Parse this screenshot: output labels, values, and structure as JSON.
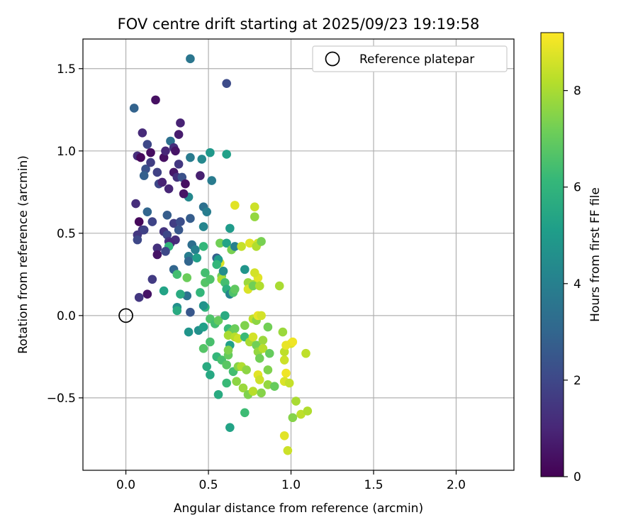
{
  "chart_data": {
    "type": "scatter",
    "title": "FOV centre drift starting at 2025/09/23 19:19:58",
    "xlabel": "Angular distance from reference (arcmin)",
    "ylabel": "Rotation from reference (arcmin)",
    "xlim": [
      -0.26,
      2.35
    ],
    "ylim": [
      -0.94,
      1.68
    ],
    "xticks": [
      0.0,
      0.5,
      1.0,
      1.5,
      2.0
    ],
    "xtick_labels": [
      "0.0",
      "0.5",
      "1.0",
      "1.5",
      "2.0"
    ],
    "yticks": [
      -0.5,
      0.0,
      0.5,
      1.0,
      1.5
    ],
    "ytick_labels": [
      "−0.5",
      "0.0",
      "0.5",
      "1.0",
      "1.5"
    ],
    "grid": true,
    "legend": {
      "position": "top-right",
      "entries": [
        "Reference platepar"
      ]
    },
    "reference_point": {
      "x": 0.0,
      "y": 0.0
    },
    "colorbar": {
      "label": "Hours from first FF file",
      "range": [
        0,
        9.2
      ],
      "ticks": [
        0,
        2,
        4,
        6,
        8
      ],
      "tick_labels": [
        "0",
        "2",
        "4",
        "6",
        "8"
      ],
      "colormap": [
        "#440154",
        "#482878",
        "#3e4989",
        "#31688e",
        "#26828e",
        "#1f9e89",
        "#35b779",
        "#6ece58",
        "#b5de2b",
        "#fde725"
      ]
    },
    "points": [
      [
        0.05,
        1.26,
        2.9
      ],
      [
        0.18,
        1.31,
        0.4
      ],
      [
        0.39,
        1.56,
        3.6
      ],
      [
        0.61,
        1.41,
        2.1
      ],
      [
        0.1,
        1.11,
        1.1
      ],
      [
        0.13,
        1.04,
        2.0
      ],
      [
        0.15,
        0.99,
        0.3
      ],
      [
        0.07,
        0.97,
        1.2
      ],
      [
        0.09,
        0.96,
        0.2
      ],
      [
        0.23,
        0.96,
        0.4
      ],
      [
        0.24,
        1.0,
        1.0
      ],
      [
        0.27,
        1.06,
        3.4
      ],
      [
        0.29,
        1.02,
        1.2
      ],
      [
        0.3,
        1.0,
        0.5
      ],
      [
        0.32,
        1.1,
        0.7
      ],
      [
        0.33,
        1.17,
        0.9
      ],
      [
        0.39,
        0.96,
        3.8
      ],
      [
        0.46,
        0.95,
        4.3
      ],
      [
        0.51,
        0.99,
        4.9
      ],
      [
        0.61,
        0.98,
        5.2
      ],
      [
        0.12,
        0.89,
        2.3
      ],
      [
        0.11,
        0.85,
        2.8
      ],
      [
        0.15,
        0.93,
        1.7
      ],
      [
        0.19,
        0.87,
        1.8
      ],
      [
        0.2,
        0.8,
        2.0
      ],
      [
        0.22,
        0.81,
        0.9
      ],
      [
        0.26,
        0.77,
        1.0
      ],
      [
        0.29,
        0.87,
        0.6
      ],
      [
        0.31,
        0.84,
        1.3
      ],
      [
        0.32,
        0.92,
        1.5
      ],
      [
        0.34,
        0.84,
        2.3
      ],
      [
        0.36,
        0.8,
        0.4
      ],
      [
        0.38,
        0.72,
        4.3
      ],
      [
        0.45,
        0.85,
        0.8
      ],
      [
        0.52,
        0.82,
        3.8
      ],
      [
        0.06,
        0.68,
        1.2
      ],
      [
        0.13,
        0.63,
        3.0
      ],
      [
        0.16,
        0.57,
        1.9
      ],
      [
        0.08,
        0.57,
        0.2
      ],
      [
        0.1,
        0.52,
        1.3
      ],
      [
        0.07,
        0.49,
        1.5
      ],
      [
        0.07,
        0.46,
        2.0
      ],
      [
        0.11,
        0.52,
        1.8
      ],
      [
        0.19,
        0.41,
        1.3
      ],
      [
        0.19,
        0.37,
        0.5
      ],
      [
        0.23,
        0.51,
        1.4
      ],
      [
        0.25,
        0.61,
        2.7
      ],
      [
        0.25,
        0.49,
        2.0
      ],
      [
        0.26,
        0.45,
        1.4
      ],
      [
        0.29,
        0.56,
        1.7
      ],
      [
        0.3,
        0.46,
        1.2
      ],
      [
        0.32,
        0.52,
        2.5
      ],
      [
        0.33,
        0.57,
        2.2
      ],
      [
        0.35,
        0.74,
        0.5
      ],
      [
        0.39,
        0.59,
        2.7
      ],
      [
        0.47,
        0.66,
        3.4
      ],
      [
        0.49,
        0.63,
        3.9
      ],
      [
        0.47,
        0.54,
        4.2
      ],
      [
        0.63,
        0.53,
        5.0
      ],
      [
        0.66,
        0.67,
        8.8
      ],
      [
        0.78,
        0.66,
        8.5
      ],
      [
        0.78,
        0.6,
        7.7
      ],
      [
        0.27,
        0.44,
        1.0
      ],
      [
        0.26,
        0.42,
        6.0
      ],
      [
        0.24,
        0.39,
        2.0
      ],
      [
        0.4,
        0.43,
        3.3
      ],
      [
        0.42,
        0.4,
        4.0
      ],
      [
        0.38,
        0.36,
        3.9
      ],
      [
        0.38,
        0.33,
        3.0
      ],
      [
        0.43,
        0.35,
        5.2
      ],
      [
        0.47,
        0.42,
        6.1
      ],
      [
        0.55,
        0.35,
        2.8
      ],
      [
        0.57,
        0.44,
        7.2
      ],
      [
        0.61,
        0.44,
        5.3
      ],
      [
        0.64,
        0.4,
        7.3
      ],
      [
        0.66,
        0.42,
        4.0
      ],
      [
        0.7,
        0.42,
        8.4
      ],
      [
        0.75,
        0.44,
        8.8
      ],
      [
        0.8,
        0.44,
        8.6
      ],
      [
        0.79,
        0.42,
        8.1
      ],
      [
        0.82,
        0.45,
        7.3
      ],
      [
        0.16,
        0.22,
        1.6
      ],
      [
        0.13,
        0.13,
        0.5
      ],
      [
        0.08,
        0.11,
        1.5
      ],
      [
        0.29,
        0.28,
        3.0
      ],
      [
        0.31,
        0.25,
        6.4
      ],
      [
        0.37,
        0.23,
        7.1
      ],
      [
        0.37,
        0.12,
        3.5
      ],
      [
        0.33,
        0.13,
        5.6
      ],
      [
        0.23,
        0.15,
        5.3
      ],
      [
        0.31,
        0.05,
        4.6
      ],
      [
        0.31,
        0.03,
        5.6
      ],
      [
        0.39,
        0.02,
        2.5
      ],
      [
        0.45,
        0.14,
        6.1
      ],
      [
        0.48,
        0.26,
        6.4
      ],
      [
        0.48,
        0.2,
        6.7
      ],
      [
        0.48,
        0.05,
        6.0
      ],
      [
        0.47,
        0.06,
        4.7
      ],
      [
        0.51,
        0.22,
        6.6
      ],
      [
        0.58,
        0.24,
        7.2
      ],
      [
        0.58,
        0.22,
        8.0
      ],
      [
        0.57,
        0.32,
        8.7
      ],
      [
        0.6,
        0.2,
        6.4
      ],
      [
        0.56,
        0.34,
        5.0
      ],
      [
        0.55,
        0.31,
        6.1
      ],
      [
        0.59,
        0.27,
        4.5
      ],
      [
        0.61,
        0.16,
        5.8
      ],
      [
        0.63,
        0.13,
        4.2
      ],
      [
        0.65,
        0.14,
        6.6
      ],
      [
        0.66,
        0.16,
        6.9
      ],
      [
        0.72,
        0.28,
        4.8
      ],
      [
        0.74,
        0.2,
        7.8
      ],
      [
        0.74,
        0.16,
        8.7
      ],
      [
        0.77,
        0.19,
        8.0
      ],
      [
        0.77,
        0.18,
        7.2
      ],
      [
        0.8,
        0.23,
        8.8
      ],
      [
        0.78,
        0.26,
        8.6
      ],
      [
        0.81,
        0.18,
        8.1
      ],
      [
        0.93,
        0.18,
        8.0
      ],
      [
        0.38,
        -0.1,
        4.8
      ],
      [
        0.44,
        -0.09,
        4.6
      ],
      [
        0.47,
        -0.07,
        5.2
      ],
      [
        0.51,
        -0.02,
        6.6
      ],
      [
        0.54,
        -0.05,
        6.4
      ],
      [
        0.56,
        -0.03,
        7.0
      ],
      [
        0.6,
        0.0,
        5.6
      ],
      [
        0.62,
        -0.08,
        6.2
      ],
      [
        0.64,
        -0.1,
        6.9
      ],
      [
        0.66,
        -0.08,
        7.1
      ],
      [
        0.62,
        -0.12,
        8.0
      ],
      [
        0.66,
        -0.13,
        8.2
      ],
      [
        0.68,
        -0.14,
        8.5
      ],
      [
        0.72,
        -0.06,
        7.4
      ],
      [
        0.77,
        -0.02,
        8.3
      ],
      [
        0.79,
        -0.03,
        7.6
      ],
      [
        0.8,
        0.0,
        8.9
      ],
      [
        0.82,
        0.0,
        8.6
      ],
      [
        0.86,
        -0.07,
        7.2
      ],
      [
        0.95,
        -0.1,
        7.8
      ],
      [
        1.0,
        -0.17,
        8.7
      ],
      [
        1.01,
        -0.16,
        9.0
      ],
      [
        0.47,
        -0.2,
        6.7
      ],
      [
        0.51,
        -0.16,
        6.5
      ],
      [
        0.55,
        -0.25,
        6.1
      ],
      [
        0.58,
        -0.27,
        6.5
      ],
      [
        0.62,
        -0.24,
        7.0
      ],
      [
        0.63,
        -0.18,
        5.2
      ],
      [
        0.62,
        -0.21,
        7.4
      ],
      [
        0.61,
        -0.3,
        6.8
      ],
      [
        0.65,
        -0.34,
        6.4
      ],
      [
        0.68,
        -0.31,
        7.5
      ],
      [
        0.7,
        -0.31,
        8.1
      ],
      [
        0.73,
        -0.33,
        7.6
      ],
      [
        0.72,
        -0.13,
        6.2
      ],
      [
        0.75,
        -0.16,
        8.0
      ],
      [
        0.77,
        -0.13,
        8.6
      ],
      [
        0.79,
        -0.18,
        7.2
      ],
      [
        0.8,
        -0.22,
        7.7
      ],
      [
        0.81,
        -0.26,
        7.2
      ],
      [
        0.83,
        -0.15,
        7.8
      ],
      [
        0.83,
        -0.2,
        8.2
      ],
      [
        0.87,
        -0.23,
        7.0
      ],
      [
        0.86,
        -0.33,
        7.4
      ],
      [
        0.86,
        -0.42,
        7.7
      ],
      [
        0.9,
        -0.43,
        7.0
      ],
      [
        0.96,
        -0.22,
        8.3
      ],
      [
        0.96,
        -0.27,
        8.5
      ],
      [
        0.97,
        -0.18,
        8.9
      ],
      [
        0.97,
        -0.35,
        9.0
      ],
      [
        0.96,
        -0.4,
        8.7
      ],
      [
        0.99,
        -0.41,
        8.4
      ],
      [
        1.09,
        -0.23,
        8.3
      ],
      [
        0.49,
        -0.31,
        5.6
      ],
      [
        0.51,
        -0.36,
        5.5
      ],
      [
        0.56,
        -0.48,
        5.6
      ],
      [
        0.61,
        -0.41,
        6.2
      ],
      [
        0.67,
        -0.4,
        7.6
      ],
      [
        0.71,
        -0.44,
        7.8
      ],
      [
        0.74,
        -0.48,
        7.4
      ],
      [
        0.77,
        -0.46,
        8.2
      ],
      [
        0.8,
        -0.36,
        8.8
      ],
      [
        0.81,
        -0.39,
        8.5
      ],
      [
        0.82,
        -0.47,
        7.5
      ],
      [
        0.72,
        -0.59,
        6.3
      ],
      [
        0.63,
        -0.68,
        5.3
      ],
      [
        1.03,
        -0.52,
        8.0
      ],
      [
        1.06,
        -0.6,
        8.3
      ],
      [
        1.01,
        -0.62,
        7.5
      ],
      [
        1.1,
        -0.58,
        8.1
      ],
      [
        0.96,
        -0.73,
        8.8
      ],
      [
        0.98,
        -0.82,
        8.5
      ]
    ]
  }
}
